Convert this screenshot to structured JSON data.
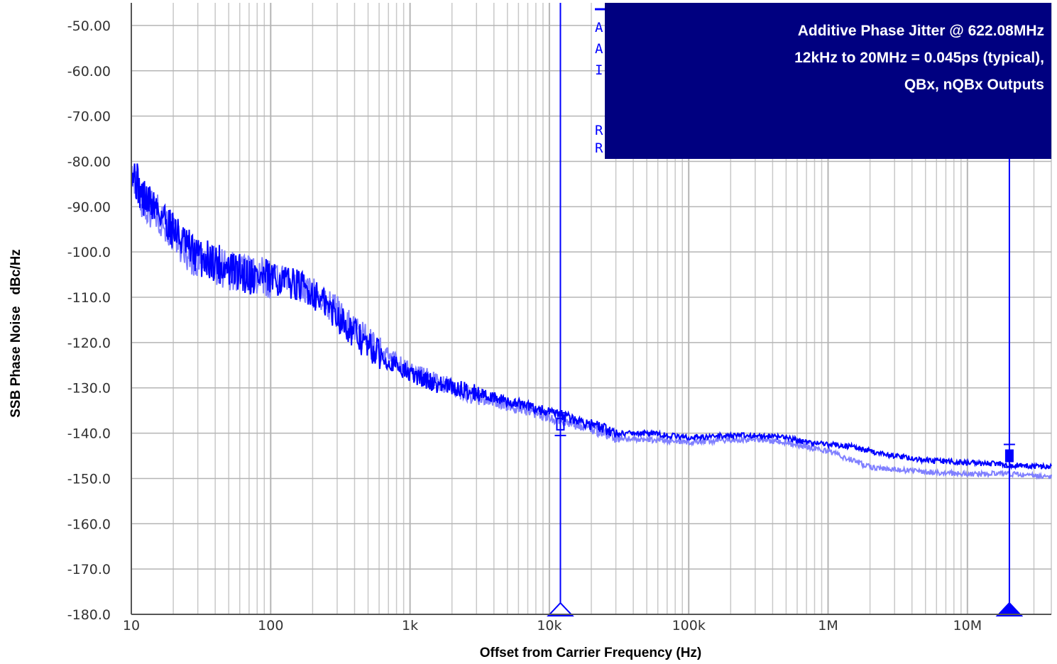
{
  "chart_data": {
    "type": "line",
    "xlabel": "Offset from Carrier Frequency (Hz)",
    "ylabel": "SSB Phase Noise   dBc/Hz",
    "x_scale": "log",
    "xlim": [
      10,
      40000000
    ],
    "ylim": [
      -180,
      -45
    ],
    "x_ticks": [
      {
        "value": 10,
        "label": "10"
      },
      {
        "value": 100,
        "label": "100"
      },
      {
        "value": 1000,
        "label": "1k"
      },
      {
        "value": 10000,
        "label": "10k"
      },
      {
        "value": 100000,
        "label": "100k"
      },
      {
        "value": 1000000,
        "label": "1M"
      },
      {
        "value": 10000000,
        "label": "10M"
      }
    ],
    "y_ticks": [
      {
        "value": -50,
        "label": "-50.00"
      },
      {
        "value": -60,
        "label": "-60.00"
      },
      {
        "value": -70,
        "label": "-70.00"
      },
      {
        "value": -80,
        "label": "-80.00"
      },
      {
        "value": -90,
        "label": "-90.00"
      },
      {
        "value": -100,
        "label": "-100.0"
      },
      {
        "value": -110,
        "label": "-110.0"
      },
      {
        "value": -120,
        "label": "-120.0"
      },
      {
        "value": -130,
        "label": "-130.0"
      },
      {
        "value": -140,
        "label": "-140.0"
      },
      {
        "value": -150,
        "label": "-150.0"
      },
      {
        "value": -160,
        "label": "-160.0"
      },
      {
        "value": -170,
        "label": "-170.0"
      },
      {
        "value": -180,
        "label": "-180.0"
      }
    ],
    "grid": true,
    "series": [
      {
        "color": "#0000ff",
        "x": [
          10,
          12,
          15,
          20,
          25,
          30,
          40,
          50,
          70,
          100,
          150,
          200,
          300,
          400,
          500,
          700,
          1000,
          1500,
          2000,
          3000,
          5000,
          7000,
          10000,
          12000,
          15000,
          20000,
          30000,
          50000,
          100000,
          200000,
          300000,
          500000,
          700000,
          1000000,
          1500000,
          2000000,
          3000000,
          5000000,
          10000000,
          20000000,
          40000000
        ],
        "y": [
          -81,
          -88,
          -90,
          -95,
          -99,
          -101,
          -102,
          -104,
          -105,
          -106,
          -107,
          -109,
          -114,
          -118,
          -121,
          -124,
          -127,
          -129,
          -130,
          -131,
          -133,
          -134,
          -135.5,
          -136,
          -137,
          -138,
          -140,
          -140,
          -141,
          -140.5,
          -140.5,
          -141,
          -142,
          -142.5,
          -143,
          -144,
          -145,
          -146,
          -146.5,
          -147,
          -147.5
        ]
      },
      {
        "color": "#8080ff",
        "x": [
          10,
          12,
          15,
          20,
          25,
          30,
          40,
          50,
          70,
          100,
          150,
          200,
          300,
          400,
          500,
          700,
          1000,
          1500,
          2000,
          3000,
          5000,
          7000,
          10000,
          12000,
          15000,
          20000,
          30000,
          50000,
          100000,
          200000,
          300000,
          500000,
          700000,
          1000000,
          1500000,
          2000000,
          3000000,
          5000000,
          10000000,
          20000000,
          40000000
        ],
        "y": [
          -83,
          -89,
          -91,
          -96,
          -100,
          -102,
          -103,
          -104,
          -105,
          -106,
          -107,
          -109,
          -113,
          -117,
          -120,
          -123,
          -126,
          -128,
          -130,
          -132,
          -134,
          -135,
          -136.5,
          -137,
          -138,
          -139,
          -141,
          -141.5,
          -142,
          -141.5,
          -141.5,
          -142,
          -143,
          -144,
          -146,
          -147.5,
          -148,
          -148.5,
          -149,
          -149,
          -149.5
        ]
      }
    ],
    "markers": [
      {
        "x": 12000,
        "y": -138,
        "style": "hollow-triangle"
      },
      {
        "x": 20000000,
        "y": -145,
        "style": "filled-triangle"
      }
    ],
    "annotation": {
      "lines": [
        "Additive Phase Jitter @ 622.08MHz",
        "12kHz to 20MHz = 0.045ps (typical),",
        "QBx, nQBx Outputs"
      ]
    },
    "obscured_fragments": [
      "A",
      "A",
      "I",
      "R",
      "R"
    ]
  }
}
